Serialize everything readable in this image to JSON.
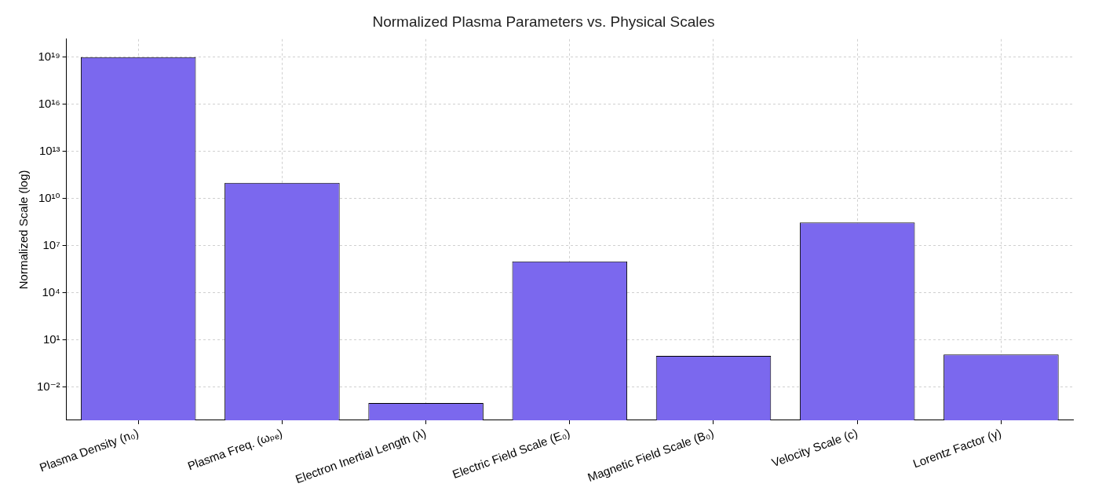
{
  "chart_data": {
    "type": "bar",
    "title": "Normalized Plasma Parameters vs. Physical Scales",
    "ylabel": "Normalized Scale (log)",
    "categories": [
      "Plasma Density (n₀)",
      "Plasma Freq. (ωₚₑ)",
      "Electron Inertial Length (λ)",
      "Electric Field Scale (E₀)",
      "Magnetic Field Scale (B₀)",
      "Velocity Scale (c)",
      "Lorentz Factor (γ)"
    ],
    "values": [
      1e+19,
      100000000000.0,
      0.001,
      1000000,
      1,
      300000000,
      1.2
    ],
    "color": "#7b68ee",
    "log": "y",
    "ylim": [
      8e-05,
      1.4e+20
    ],
    "yticks": [
      {
        "value": 0.01,
        "label": "10⁻²"
      },
      {
        "value": 10,
        "label": "10¹"
      },
      {
        "value": 10000,
        "label": "10⁴"
      },
      {
        "value": 10000000,
        "label": "10⁷"
      },
      {
        "value": 10000000000,
        "label": "10¹⁰"
      },
      {
        "value": 10000000000000,
        "label": "10¹³"
      },
      {
        "value": 1e+16,
        "label": "10¹⁶"
      },
      {
        "value": 1e+19,
        "label": "10¹⁹"
      }
    ],
    "grid": true
  }
}
